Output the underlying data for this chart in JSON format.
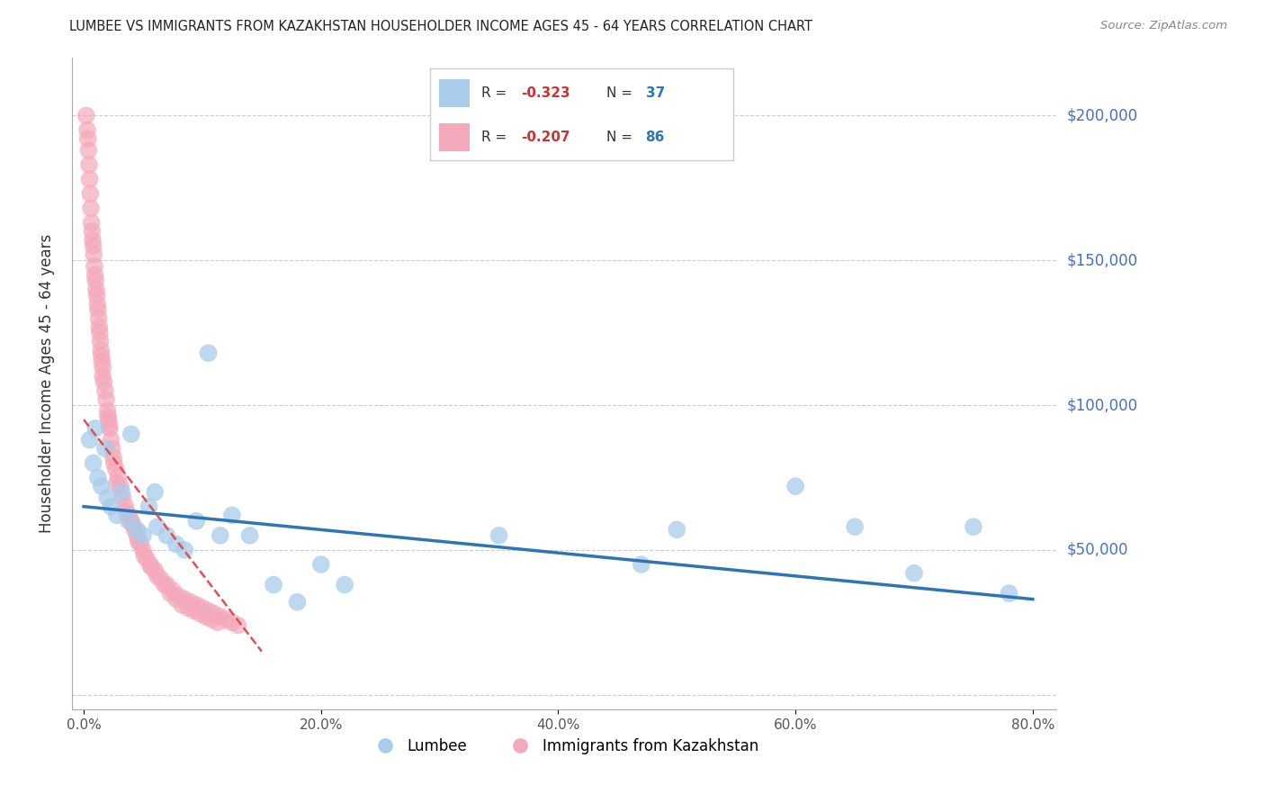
{
  "title": "LUMBEE VS IMMIGRANTS FROM KAZAKHSTAN HOUSEHOLDER INCOME AGES 45 - 64 YEARS CORRELATION CHART",
  "source": "Source: ZipAtlas.com",
  "ylabel": "Householder Income Ages 45 - 64 years",
  "xlabel_ticks": [
    "0.0%",
    "20.0%",
    "40.0%",
    "60.0%",
    "80.0%"
  ],
  "xlabel_vals": [
    0,
    20,
    40,
    60,
    80
  ],
  "ylabel_ticks": [
    0,
    50000,
    100000,
    150000,
    200000
  ],
  "ylabel_labels": [
    "",
    "$50,000",
    "$100,000",
    "$150,000",
    "$200,000"
  ],
  "ylim": [
    -5000,
    220000
  ],
  "xlim": [
    -1,
    82
  ],
  "lumbee_R": -0.323,
  "lumbee_N": 37,
  "kaz_R": -0.207,
  "kaz_N": 86,
  "lumbee_color": "#A8CCEA",
  "kaz_color": "#F4A8BB",
  "lumbee_line_color": "#2E75B6",
  "kaz_line_color": "#E05050",
  "bg_color": "#FFFFFF",
  "grid_color": "#CCCCCC",
  "title_color": "#222222",
  "right_label_color": "#4472C4",
  "legend_R_color": "#CC3333",
  "legend_N_color": "#2E75B6",
  "legend_text_color": "#333333",
  "lumbee_x": [
    0.5,
    0.8,
    1.2,
    1.5,
    2.0,
    2.3,
    2.8,
    3.2,
    3.8,
    4.5,
    5.0,
    5.5,
    6.2,
    7.0,
    7.8,
    8.5,
    9.5,
    10.5,
    11.5,
    12.5,
    14.0,
    16.0,
    18.0,
    20.0,
    22.0,
    35.0,
    47.0,
    50.0,
    60.0,
    65.0,
    70.0,
    75.0,
    78.0,
    1.0,
    1.8,
    4.0,
    6.0
  ],
  "lumbee_y": [
    88000,
    80000,
    75000,
    72000,
    68000,
    65000,
    62000,
    70000,
    60000,
    57000,
    55000,
    65000,
    58000,
    55000,
    52000,
    50000,
    60000,
    118000,
    55000,
    62000,
    55000,
    38000,
    32000,
    45000,
    38000,
    55000,
    45000,
    57000,
    72000,
    58000,
    42000,
    58000,
    35000,
    92000,
    85000,
    90000,
    70000
  ],
  "kaz_x": [
    0.2,
    0.3,
    0.35,
    0.4,
    0.45,
    0.5,
    0.55,
    0.6,
    0.65,
    0.7,
    0.75,
    0.8,
    0.85,
    0.9,
    0.95,
    1.0,
    1.05,
    1.1,
    1.15,
    1.2,
    1.25,
    1.3,
    1.35,
    1.4,
    1.5,
    1.55,
    1.6,
    1.7,
    1.8,
    1.9,
    2.0,
    2.1,
    2.2,
    2.3,
    2.4,
    2.5,
    2.7,
    2.9,
    3.1,
    3.3,
    3.5,
    3.8,
    4.0,
    4.3,
    4.5,
    4.8,
    5.0,
    5.3,
    5.6,
    6.0,
    6.5,
    7.0,
    7.5,
    8.0,
    8.5,
    9.0,
    9.5,
    10.0,
    10.5,
    11.0,
    11.5,
    12.0,
    12.5,
    13.0,
    1.45,
    1.6,
    2.05,
    2.15,
    2.55,
    2.8,
    3.6,
    4.1,
    4.6,
    5.1,
    5.7,
    6.2,
    6.8,
    7.3,
    7.8,
    8.3,
    8.8,
    9.3,
    9.8,
    10.3,
    10.8,
    11.3
  ],
  "kaz_y": [
    200000,
    195000,
    192000,
    188000,
    183000,
    178000,
    173000,
    168000,
    163000,
    160000,
    157000,
    155000,
    152000,
    148000,
    145000,
    143000,
    140000,
    138000,
    135000,
    133000,
    130000,
    127000,
    125000,
    122000,
    117000,
    115000,
    113000,
    108000,
    105000,
    102000,
    98000,
    95000,
    92000,
    88000,
    85000,
    82000,
    78000,
    75000,
    72000,
    68000,
    65000,
    62000,
    60000,
    57000,
    55000,
    52000,
    50000,
    47000,
    45000,
    43000,
    40000,
    38000,
    36000,
    34000,
    33000,
    32000,
    31000,
    30000,
    29000,
    28000,
    27000,
    26000,
    25000,
    24000,
    119000,
    110000,
    96000,
    93000,
    80000,
    73000,
    63000,
    59000,
    53000,
    48000,
    44000,
    41000,
    38000,
    35000,
    33000,
    31000,
    30000,
    29000,
    28000,
    27000,
    26000,
    25000
  ],
  "kaz_trendline_x0": 0.0,
  "kaz_trendline_y0": 95000,
  "kaz_trendline_x1": 15.0,
  "kaz_trendline_y1": 15000,
  "lumbee_trendline_x0": 0.0,
  "lumbee_trendline_y0": 65000,
  "lumbee_trendline_x1": 80.0,
  "lumbee_trendline_y1": 33000
}
